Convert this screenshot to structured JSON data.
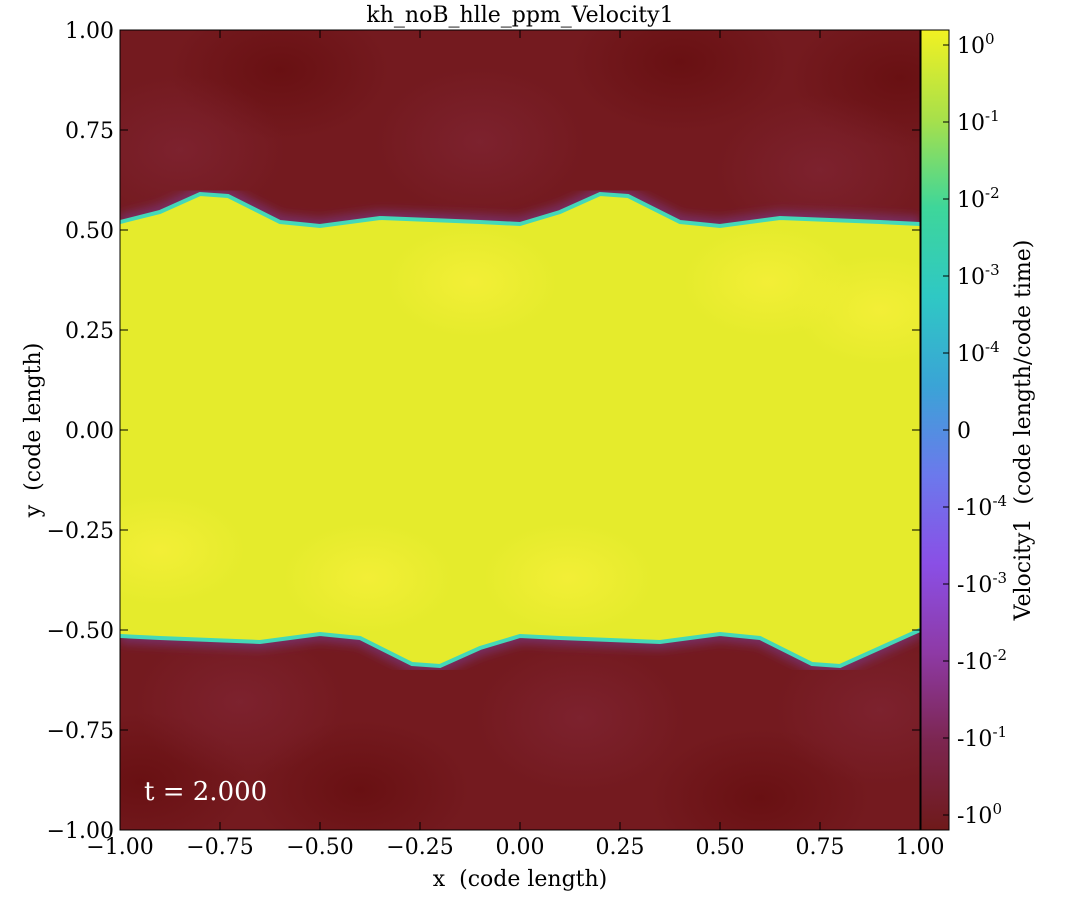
{
  "chart_data": {
    "type": "heatmap",
    "title": "kh_noB_hlle_ppm_Velocity1",
    "xlabel": "x  (code length)",
    "ylabel": "y  (code length)",
    "xlim": [
      -1.0,
      1.0
    ],
    "ylim": [
      -1.0,
      1.0
    ],
    "x_ticks": [
      "−1.00",
      "−0.75",
      "−0.50",
      "−0.25",
      "0.00",
      "0.25",
      "0.50",
      "0.75",
      "1.00"
    ],
    "y_ticks": [
      "1.00",
      "0.75",
      "0.50",
      "0.25",
      "0.00",
      "−0.25",
      "−0.50",
      "−0.75",
      "−1.00"
    ],
    "annotation": "t = 2.000",
    "colorbar": {
      "label": "Velocity1  (code length/code time)",
      "scale": "symlog",
      "ticks": [
        {
          "base": "10",
          "exp": "0"
        },
        {
          "base": "10",
          "exp": "-1"
        },
        {
          "base": "10",
          "exp": "-2"
        },
        {
          "base": "10",
          "exp": "-3"
        },
        {
          "base": "10",
          "exp": "-4"
        },
        {
          "base": "0",
          "exp": ""
        },
        {
          "base": "-10",
          "exp": "-4"
        },
        {
          "base": "-10",
          "exp": "-3"
        },
        {
          "base": "-10",
          "exp": "-2"
        },
        {
          "base": "-10",
          "exp": "-1"
        },
        {
          "base": "-10",
          "exp": "0"
        }
      ],
      "colors": [
        "#f1f122",
        "#a8e04a",
        "#3ed69a",
        "#2fc8c4",
        "#3aa4d6",
        "#6b79ec",
        "#8a4fe6",
        "#8e3aa6",
        "#7c2650",
        "#6f1a1a"
      ]
    },
    "field": {
      "interior_value": 1.0,
      "exterior_value": -1.0,
      "interface_color": "#44d8b8",
      "colors": {
        "inner": "#e5eb2c",
        "inner_highlight": "#f5ef38",
        "outer": "#741a1f",
        "outer_dark": "#6c1113",
        "outer_light": "#7e2230"
      },
      "upper_interface": [
        [
          -1.0,
          0.52
        ],
        [
          -0.9,
          0.545
        ],
        [
          -0.8,
          0.59
        ],
        [
          -0.73,
          0.585
        ],
        [
          -0.6,
          0.52
        ],
        [
          -0.5,
          0.51
        ],
        [
          -0.35,
          0.53
        ],
        [
          -0.1,
          0.52
        ],
        [
          0.0,
          0.515
        ],
        [
          0.1,
          0.545
        ],
        [
          0.2,
          0.59
        ],
        [
          0.27,
          0.585
        ],
        [
          0.4,
          0.52
        ],
        [
          0.5,
          0.51
        ],
        [
          0.65,
          0.53
        ],
        [
          0.9,
          0.52
        ],
        [
          1.0,
          0.515
        ]
      ],
      "lower_interface": [
        [
          -1.0,
          -0.515
        ],
        [
          -0.9,
          -0.52
        ],
        [
          -0.65,
          -0.53
        ],
        [
          -0.5,
          -0.51
        ],
        [
          -0.4,
          -0.52
        ],
        [
          -0.27,
          -0.585
        ],
        [
          -0.2,
          -0.59
        ],
        [
          -0.1,
          -0.545
        ],
        [
          0.0,
          -0.515
        ],
        [
          0.1,
          -0.52
        ],
        [
          0.35,
          -0.53
        ],
        [
          0.5,
          -0.51
        ],
        [
          0.6,
          -0.52
        ],
        [
          0.73,
          -0.585
        ],
        [
          0.8,
          -0.59
        ],
        [
          0.9,
          -0.545
        ],
        [
          1.0,
          -0.5
        ]
      ]
    }
  }
}
